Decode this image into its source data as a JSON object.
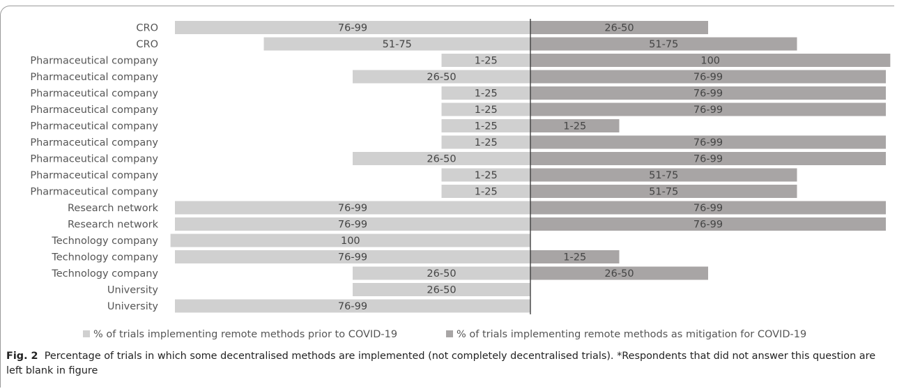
{
  "chart_data": {
    "type": "bar",
    "orientation": "horizontal-diverging",
    "categories": [
      "CRO",
      "CRO",
      "Pharmaceutical company",
      "Pharmaceutical company",
      "Pharmaceutical company",
      "Pharmaceutical company",
      "Pharmaceutical company",
      "Pharmaceutical company",
      "Pharmaceutical company",
      "Pharmaceutical company",
      "Pharmaceutical company",
      "Research network",
      "Research network",
      "Technology company",
      "Technology company",
      "Technology company",
      "University",
      "University"
    ],
    "series": [
      {
        "name": "% of trials implementing remote methods prior to COVID-19",
        "color": "#d0d0d0",
        "side": "left",
        "labels": [
          "76-99",
          "51-75",
          "1-25",
          "26-50",
          "1-25",
          "1-25",
          "1-25",
          "1-25",
          "26-50",
          "1-25",
          "1-25",
          "76-99",
          "76-99",
          "100",
          "76-99",
          "26-50",
          "26-50",
          "76-99"
        ],
        "values": [
          4,
          3,
          1,
          2,
          1,
          1,
          1,
          1,
          2,
          1,
          1,
          4,
          4,
          4.05,
          4,
          2,
          2,
          4
        ]
      },
      {
        "name": "% of trials implementing remote methods as mitigation for COVID-19",
        "color": "#a8a5a5",
        "side": "right",
        "labels": [
          "26-50",
          "51-75",
          "100",
          "76-99",
          "76-99",
          "76-99",
          "1-25",
          "76-99",
          "76-99",
          "51-75",
          "51-75",
          "76-99",
          "76-99",
          null,
          "1-25",
          "26-50",
          null,
          null
        ],
        "values": [
          2,
          3,
          4.05,
          4,
          4,
          4,
          1,
          4,
          4,
          3,
          3,
          4,
          4,
          null,
          1,
          2,
          null,
          null
        ]
      }
    ],
    "colors": {
      "prior": "#d0d0d0",
      "mitigation": "#a8a5a5",
      "axis": "#333333",
      "text": "#555555"
    }
  },
  "caption": {
    "label": "Fig. 2",
    "text": "Percentage of trials in which some decentralised methods are implemented (not completely decentralised trials). *Respondents that did not answer this question are left blank in figure"
  }
}
